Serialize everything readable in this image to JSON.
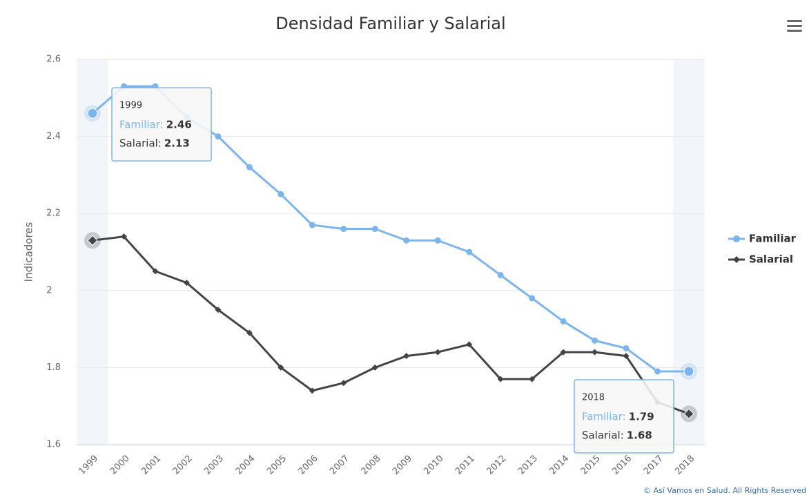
{
  "chart_data": {
    "type": "line",
    "title": "Densidad Familiar y Salarial",
    "y_label": "Indicadores",
    "categories": [
      "1999",
      "2000",
      "2001",
      "2002",
      "2003",
      "2004",
      "2005",
      "2006",
      "2007",
      "2008",
      "2009",
      "2010",
      "2011",
      "2012",
      "2013",
      "2014",
      "2015",
      "2016",
      "2017",
      "2018"
    ],
    "series": [
      {
        "name": "Familiar",
        "color": "#7cb5ec",
        "marker": "circle",
        "values": [
          2.46,
          2.53,
          2.53,
          2.45,
          2.4,
          2.32,
          2.25,
          2.17,
          2.16,
          2.16,
          2.13,
          2.13,
          2.1,
          2.04,
          1.98,
          1.92,
          1.87,
          1.85,
          1.79,
          1.79
        ]
      },
      {
        "name": "Salarial",
        "color": "#434348",
        "marker": "diamond",
        "values": [
          2.13,
          2.14,
          2.05,
          2.02,
          1.95,
          1.89,
          1.8,
          1.74,
          1.76,
          1.8,
          1.83,
          1.84,
          1.86,
          1.77,
          1.77,
          1.84,
          1.84,
          1.83,
          1.71,
          1.68
        ]
      }
    ],
    "ylim": [
      1.6,
      2.6
    ],
    "yticks": [
      1.6,
      1.8,
      2,
      2.2,
      2.4,
      2.6
    ],
    "grid": true,
    "legend": "right",
    "tooltips": [
      {
        "title": "1999",
        "items": [
          {
            "label": "Familiar:",
            "value": 2.46
          },
          {
            "label": "Salarial:",
            "value": 2.13
          }
        ]
      },
      {
        "title": "2018",
        "items": [
          {
            "label": "Familiar:",
            "value": 1.79
          },
          {
            "label": "Salarial:",
            "value": 1.68
          }
        ]
      }
    ],
    "credits": "© Así Vamos en Salud. All Rights Reserved"
  }
}
